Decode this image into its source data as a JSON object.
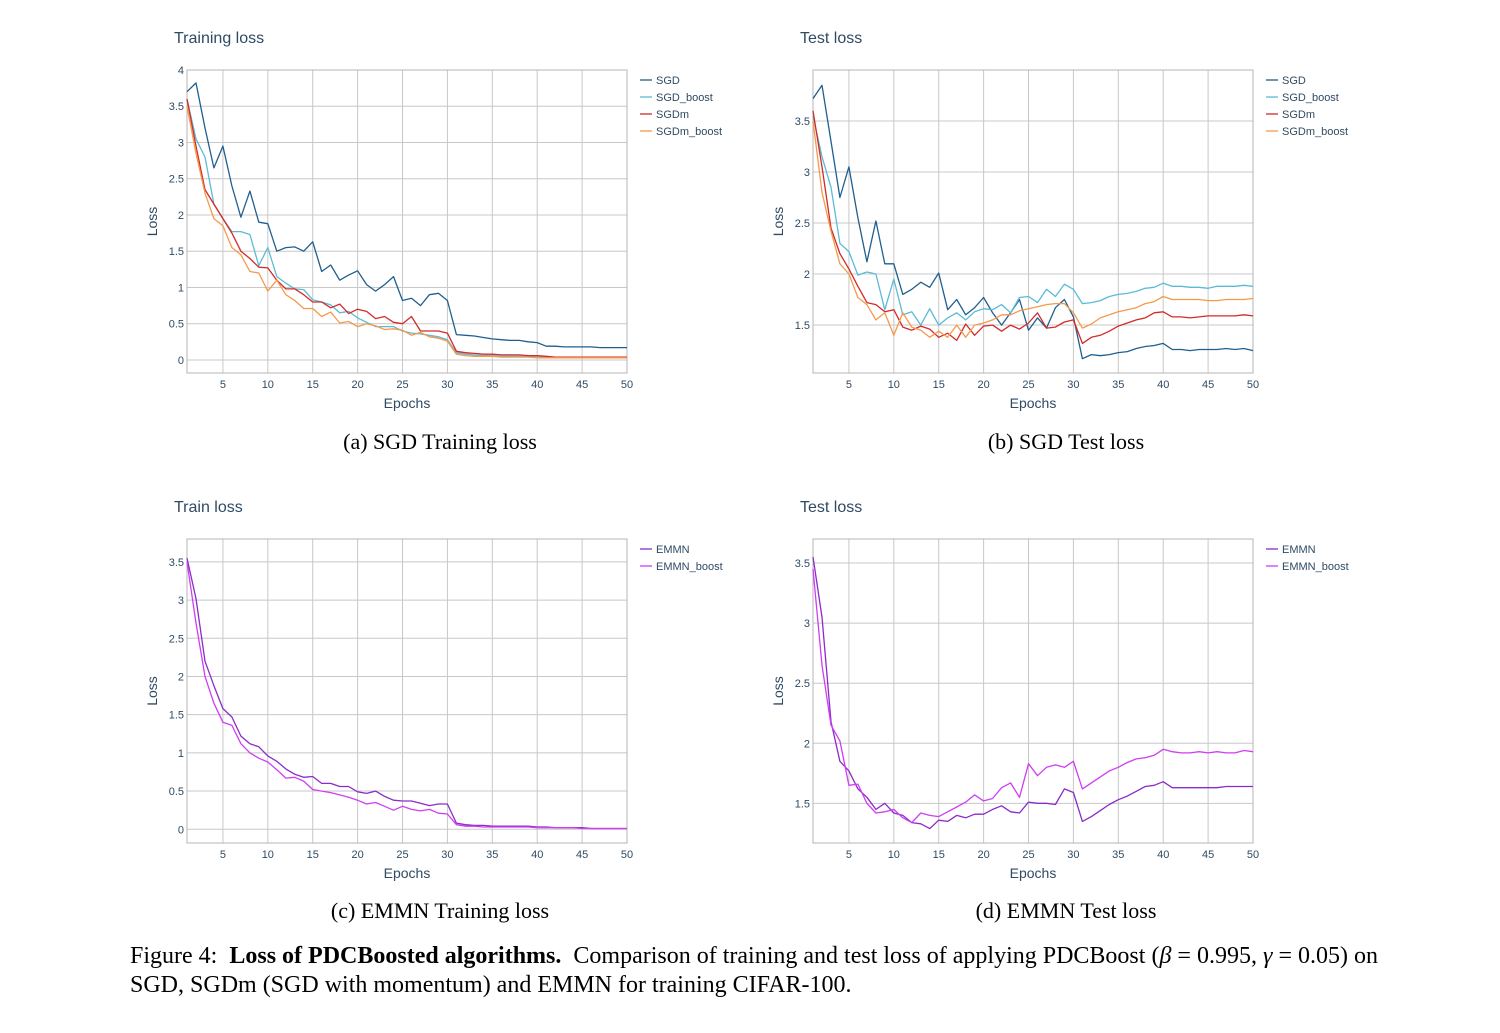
{
  "figure_caption": {
    "prefix": "Figure 4:",
    "bold": "Loss of PDCBoosted algorithms.",
    "text1": "Comparison of training and test loss of applying PDCBoost (",
    "beta_sym": "β",
    "beta_val": " = 0.995, ",
    "gamma_sym": "γ",
    "gamma_val": " = 0.05",
    "text2": ") on SGD, SGDm (SGD with momentum) and EMMN for training CIFAR-100."
  },
  "panels": [
    {
      "caption": "(a) SGD Training loss"
    },
    {
      "caption": "(b) SGD Test loss"
    },
    {
      "caption": "(c) EMMN Training loss"
    },
    {
      "caption": "(d) EMMN Test loss"
    }
  ],
  "chart_data": [
    {
      "type": "line",
      "title": "Training loss",
      "xlabel": "Epochs",
      "ylabel": "Loss",
      "xlim": [
        1,
        50
      ],
      "ylim": [
        -0.18,
        4.0
      ],
      "xticks": [
        5,
        10,
        15,
        20,
        25,
        30,
        35,
        40,
        45,
        50
      ],
      "yticks": [
        0,
        0.5,
        1,
        1.5,
        2,
        2.5,
        3,
        3.5,
        4
      ],
      "ytick_labels": [
        "0",
        "0.5",
        "1",
        "1.5",
        "2",
        "2.5",
        "3",
        "3.5",
        "4"
      ],
      "grid": true,
      "legend": "right",
      "x": [
        1,
        2,
        3,
        4,
        5,
        6,
        7,
        8,
        9,
        10,
        11,
        12,
        13,
        14,
        15,
        16,
        17,
        18,
        19,
        20,
        21,
        22,
        23,
        24,
        25,
        26,
        27,
        28,
        29,
        30,
        31,
        32,
        33,
        34,
        35,
        36,
        37,
        38,
        39,
        40,
        41,
        42,
        43,
        44,
        45,
        46,
        47,
        48,
        49,
        50
      ],
      "series": [
        {
          "name": "SGD",
          "color": "#1f5f8f",
          "values": [
            3.7,
            3.82,
            3.2,
            2.65,
            2.95,
            2.4,
            1.97,
            2.33,
            1.9,
            1.88,
            1.5,
            1.55,
            1.56,
            1.5,
            1.63,
            1.22,
            1.31,
            1.1,
            1.17,
            1.23,
            1.04,
            0.95,
            1.04,
            1.15,
            0.82,
            0.85,
            0.75,
            0.9,
            0.92,
            0.82,
            0.35,
            0.34,
            0.33,
            0.31,
            0.29,
            0.28,
            0.27,
            0.27,
            0.25,
            0.24,
            0.19,
            0.19,
            0.18,
            0.18,
            0.18,
            0.18,
            0.17,
            0.17,
            0.17,
            0.17
          ]
        },
        {
          "name": "SGD_boost",
          "color": "#5bbbd6",
          "values": [
            3.6,
            3.05,
            2.8,
            2.15,
            1.95,
            1.77,
            1.77,
            1.73,
            1.3,
            1.55,
            1.15,
            1.06,
            0.98,
            0.97,
            0.83,
            0.8,
            0.76,
            0.65,
            0.67,
            0.58,
            0.52,
            0.46,
            0.46,
            0.46,
            0.4,
            0.37,
            0.36,
            0.34,
            0.32,
            0.28,
            0.1,
            0.08,
            0.07,
            0.06,
            0.06,
            0.05,
            0.05,
            0.05,
            0.05,
            0.05,
            0.04,
            0.04,
            0.04,
            0.04,
            0.04,
            0.04,
            0.04,
            0.04,
            0.04,
            0.04
          ]
        },
        {
          "name": "SGDm",
          "color": "#d42a2a",
          "values": [
            3.6,
            2.95,
            2.35,
            2.15,
            1.95,
            1.75,
            1.5,
            1.4,
            1.28,
            1.27,
            1.1,
            0.98,
            0.98,
            0.9,
            0.8,
            0.8,
            0.72,
            0.77,
            0.64,
            0.7,
            0.67,
            0.57,
            0.6,
            0.52,
            0.5,
            0.6,
            0.4,
            0.4,
            0.4,
            0.37,
            0.12,
            0.1,
            0.09,
            0.08,
            0.08,
            0.07,
            0.07,
            0.07,
            0.06,
            0.06,
            0.05,
            0.04,
            0.04,
            0.04,
            0.04,
            0.04,
            0.04,
            0.04,
            0.04,
            0.04
          ]
        },
        {
          "name": "SGDm_boost",
          "color": "#f59a4a",
          "values": [
            3.5,
            2.85,
            2.3,
            1.95,
            1.85,
            1.55,
            1.45,
            1.22,
            1.2,
            0.95,
            1.1,
            0.9,
            0.82,
            0.71,
            0.71,
            0.6,
            0.66,
            0.51,
            0.53,
            0.46,
            0.5,
            0.47,
            0.42,
            0.43,
            0.41,
            0.34,
            0.38,
            0.32,
            0.3,
            0.26,
            0.08,
            0.06,
            0.05,
            0.05,
            0.05,
            0.04,
            0.04,
            0.04,
            0.04,
            0.03,
            0.03,
            0.03,
            0.03,
            0.03,
            0.03,
            0.03,
            0.03,
            0.03,
            0.03,
            0.03
          ]
        }
      ]
    },
    {
      "type": "line",
      "title": "Test loss",
      "xlabel": "Epochs",
      "ylabel": "Loss",
      "xlim": [
        1,
        50
      ],
      "ylim": [
        1.03,
        4.0
      ],
      "xticks": [
        5,
        10,
        15,
        20,
        25,
        30,
        35,
        40,
        45,
        50
      ],
      "yticks": [
        1.5,
        2,
        2.5,
        3,
        3.5
      ],
      "ytick_labels": [
        "1.5",
        "2",
        "2.5",
        "3",
        "3.5"
      ],
      "grid": true,
      "legend": "right",
      "x": [
        1,
        2,
        3,
        4,
        5,
        6,
        7,
        8,
        9,
        10,
        11,
        12,
        13,
        14,
        15,
        16,
        17,
        18,
        19,
        20,
        21,
        22,
        23,
        24,
        25,
        26,
        27,
        28,
        29,
        30,
        31,
        32,
        33,
        34,
        35,
        36,
        37,
        38,
        39,
        40,
        41,
        42,
        43,
        44,
        45,
        46,
        47,
        48,
        49,
        50
      ],
      "series": [
        {
          "name": "SGD",
          "color": "#1f5f8f",
          "values": [
            3.72,
            3.85,
            3.3,
            2.75,
            3.05,
            2.55,
            2.12,
            2.52,
            2.1,
            2.1,
            1.8,
            1.85,
            1.92,
            1.87,
            2.01,
            1.65,
            1.75,
            1.6,
            1.67,
            1.77,
            1.62,
            1.5,
            1.62,
            1.75,
            1.45,
            1.57,
            1.47,
            1.67,
            1.75,
            1.58,
            1.17,
            1.21,
            1.2,
            1.21,
            1.23,
            1.24,
            1.27,
            1.29,
            1.3,
            1.32,
            1.26,
            1.26,
            1.25,
            1.26,
            1.26,
            1.26,
            1.27,
            1.26,
            1.27,
            1.25
          ]
        },
        {
          "name": "SGD_boost",
          "color": "#5bbbd6",
          "values": [
            3.55,
            3.15,
            2.85,
            2.3,
            2.22,
            1.99,
            2.02,
            2.0,
            1.65,
            1.95,
            1.6,
            1.63,
            1.5,
            1.66,
            1.5,
            1.57,
            1.62,
            1.55,
            1.63,
            1.66,
            1.65,
            1.7,
            1.62,
            1.77,
            1.78,
            1.72,
            1.85,
            1.78,
            1.9,
            1.85,
            1.71,
            1.72,
            1.74,
            1.78,
            1.8,
            1.81,
            1.83,
            1.86,
            1.87,
            1.91,
            1.88,
            1.88,
            1.87,
            1.87,
            1.86,
            1.88,
            1.88,
            1.88,
            1.89,
            1.88
          ]
        },
        {
          "name": "SGDm",
          "color": "#d42a2a",
          "values": [
            3.6,
            3.05,
            2.45,
            2.2,
            2.05,
            1.88,
            1.72,
            1.7,
            1.63,
            1.65,
            1.48,
            1.45,
            1.49,
            1.46,
            1.38,
            1.42,
            1.35,
            1.51,
            1.4,
            1.49,
            1.5,
            1.44,
            1.5,
            1.46,
            1.52,
            1.62,
            1.47,
            1.48,
            1.53,
            1.55,
            1.32,
            1.38,
            1.4,
            1.44,
            1.49,
            1.52,
            1.55,
            1.57,
            1.62,
            1.63,
            1.58,
            1.58,
            1.57,
            1.58,
            1.59,
            1.59,
            1.59,
            1.59,
            1.6,
            1.59
          ]
        },
        {
          "name": "SGDm_boost",
          "color": "#f59a4a",
          "values": [
            3.5,
            2.8,
            2.42,
            2.1,
            2.0,
            1.77,
            1.7,
            1.55,
            1.62,
            1.4,
            1.62,
            1.48,
            1.45,
            1.38,
            1.44,
            1.38,
            1.5,
            1.38,
            1.5,
            1.52,
            1.55,
            1.6,
            1.6,
            1.64,
            1.66,
            1.68,
            1.7,
            1.71,
            1.71,
            1.62,
            1.47,
            1.51,
            1.57,
            1.6,
            1.63,
            1.65,
            1.67,
            1.71,
            1.73,
            1.78,
            1.75,
            1.75,
            1.75,
            1.75,
            1.74,
            1.74,
            1.75,
            1.75,
            1.75,
            1.76
          ]
        }
      ]
    },
    {
      "type": "line",
      "title": "Train loss",
      "xlabel": "Epochs",
      "ylabel": "Loss",
      "xlim": [
        1,
        50
      ],
      "ylim": [
        -0.18,
        3.8
      ],
      "xticks": [
        5,
        10,
        15,
        20,
        25,
        30,
        35,
        40,
        45,
        50
      ],
      "yticks": [
        0,
        0.5,
        1,
        1.5,
        2,
        2.5,
        3,
        3.5
      ],
      "ytick_labels": [
        "0",
        "0.5",
        "1",
        "1.5",
        "2",
        "2.5",
        "3",
        "3.5"
      ],
      "grid": true,
      "legend": "right",
      "x": [
        1,
        2,
        3,
        4,
        5,
        6,
        7,
        8,
        9,
        10,
        11,
        12,
        13,
        14,
        15,
        16,
        17,
        18,
        19,
        20,
        21,
        22,
        23,
        24,
        25,
        26,
        27,
        28,
        29,
        30,
        31,
        32,
        33,
        34,
        35,
        36,
        37,
        38,
        39,
        40,
        41,
        42,
        43,
        44,
        45,
        46,
        47,
        48,
        49,
        50
      ],
      "series": [
        {
          "name": "EMMN",
          "color": "#8a2cc9",
          "values": [
            3.55,
            3.02,
            2.2,
            1.88,
            1.58,
            1.47,
            1.22,
            1.12,
            1.08,
            0.96,
            0.89,
            0.79,
            0.72,
            0.68,
            0.69,
            0.6,
            0.6,
            0.56,
            0.56,
            0.49,
            0.47,
            0.5,
            0.43,
            0.38,
            0.37,
            0.37,
            0.34,
            0.31,
            0.33,
            0.33,
            0.08,
            0.06,
            0.05,
            0.05,
            0.04,
            0.04,
            0.04,
            0.04,
            0.04,
            0.03,
            0.03,
            0.02,
            0.02,
            0.02,
            0.02,
            0.01,
            0.01,
            0.01,
            0.01,
            0.01
          ]
        },
        {
          "name": "EMMN_boost",
          "color": "#cf3ef2",
          "values": [
            3.5,
            2.7,
            2.0,
            1.65,
            1.4,
            1.36,
            1.12,
            1.0,
            0.93,
            0.88,
            0.78,
            0.67,
            0.68,
            0.63,
            0.52,
            0.5,
            0.48,
            0.45,
            0.42,
            0.38,
            0.33,
            0.35,
            0.3,
            0.25,
            0.3,
            0.26,
            0.24,
            0.26,
            0.21,
            0.2,
            0.06,
            0.04,
            0.04,
            0.03,
            0.03,
            0.03,
            0.03,
            0.03,
            0.03,
            0.02,
            0.02,
            0.02,
            0.02,
            0.02,
            0.01,
            0.01,
            0.01,
            0.01,
            0.01,
            0.01
          ]
        }
      ]
    },
    {
      "type": "line",
      "title": "Test loss",
      "xlabel": "Epochs",
      "ylabel": "Loss",
      "xlim": [
        1,
        50
      ],
      "ylim": [
        1.17,
        3.7
      ],
      "xticks": [
        5,
        10,
        15,
        20,
        25,
        30,
        35,
        40,
        45,
        50
      ],
      "yticks": [
        1.5,
        2,
        2.5,
        3,
        3.5
      ],
      "ytick_labels": [
        "1.5",
        "2",
        "2.5",
        "3",
        "3.5"
      ],
      "grid": true,
      "legend": "right",
      "x": [
        1,
        2,
        3,
        4,
        5,
        6,
        7,
        8,
        9,
        10,
        11,
        12,
        13,
        14,
        15,
        16,
        17,
        18,
        19,
        20,
        21,
        22,
        23,
        24,
        25,
        26,
        27,
        28,
        29,
        30,
        31,
        32,
        33,
        34,
        35,
        36,
        37,
        38,
        39,
        40,
        41,
        42,
        43,
        44,
        45,
        46,
        47,
        48,
        49,
        50
      ],
      "series": [
        {
          "name": "EMMN",
          "color": "#8a2cc9",
          "values": [
            3.55,
            3.05,
            2.18,
            1.85,
            1.77,
            1.62,
            1.55,
            1.45,
            1.5,
            1.42,
            1.4,
            1.34,
            1.33,
            1.29,
            1.36,
            1.35,
            1.4,
            1.38,
            1.41,
            1.41,
            1.45,
            1.48,
            1.43,
            1.42,
            1.51,
            1.5,
            1.5,
            1.49,
            1.62,
            1.59,
            1.35,
            1.39,
            1.44,
            1.49,
            1.53,
            1.56,
            1.6,
            1.64,
            1.65,
            1.68,
            1.63,
            1.63,
            1.63,
            1.63,
            1.63,
            1.63,
            1.64,
            1.64,
            1.64,
            1.64
          ]
        },
        {
          "name": "EMMN_boost",
          "color": "#cf3ef2",
          "values": [
            3.45,
            2.65,
            2.15,
            2.02,
            1.65,
            1.66,
            1.5,
            1.42,
            1.43,
            1.45,
            1.38,
            1.34,
            1.42,
            1.4,
            1.39,
            1.43,
            1.47,
            1.51,
            1.57,
            1.52,
            1.54,
            1.63,
            1.67,
            1.55,
            1.83,
            1.73,
            1.8,
            1.82,
            1.8,
            1.85,
            1.62,
            1.67,
            1.72,
            1.77,
            1.8,
            1.84,
            1.87,
            1.88,
            1.9,
            1.95,
            1.93,
            1.92,
            1.92,
            1.93,
            1.92,
            1.93,
            1.92,
            1.92,
            1.94,
            1.93
          ]
        }
      ]
    }
  ]
}
